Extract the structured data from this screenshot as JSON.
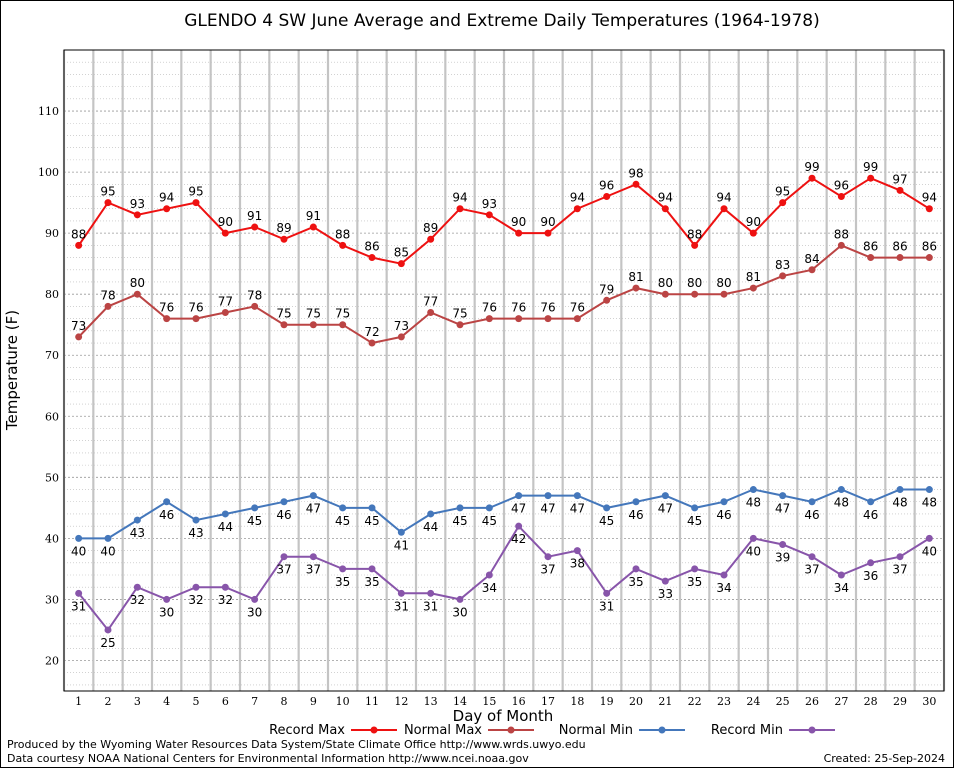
{
  "chart_data": {
    "type": "line",
    "title": "GLENDO 4 SW June Average and Extreme Daily Temperatures (1964-1978)",
    "xlabel": "Day of Month",
    "ylabel": "Temperature (F)",
    "xlim": [
      0.5,
      30.5
    ],
    "ylim": [
      15,
      120
    ],
    "yticks": [
      20,
      30,
      40,
      50,
      60,
      70,
      80,
      90,
      100,
      110
    ],
    "x": [
      1,
      2,
      3,
      4,
      5,
      6,
      7,
      8,
      9,
      10,
      11,
      12,
      13,
      14,
      15,
      16,
      17,
      18,
      19,
      20,
      21,
      22,
      23,
      24,
      25,
      26,
      27,
      28,
      29,
      30
    ],
    "grid": true,
    "legend_position": "bottom",
    "series": [
      {
        "name": "Record Max",
        "color": "#ee1111",
        "label_pos": "above",
        "values": [
          88,
          95,
          93,
          94,
          95,
          90,
          91,
          89,
          91,
          88,
          86,
          85,
          89,
          94,
          93,
          90,
          90,
          94,
          96,
          98,
          94,
          88,
          94,
          90,
          95,
          99,
          96,
          99,
          97,
          94
        ]
      },
      {
        "name": "Normal Max",
        "color": "#bb4444",
        "label_pos": "above",
        "values": [
          73,
          78,
          80,
          76,
          76,
          77,
          78,
          75,
          75,
          75,
          72,
          73,
          77,
          75,
          76,
          76,
          76,
          76,
          79,
          81,
          80,
          80,
          80,
          81,
          83,
          84,
          88,
          86,
          86,
          86
        ]
      },
      {
        "name": "Normal Min",
        "color": "#4477bb",
        "label_pos": "below",
        "values": [
          40,
          40,
          43,
          46,
          43,
          44,
          45,
          46,
          47,
          45,
          45,
          41,
          44,
          45,
          45,
          47,
          47,
          47,
          45,
          46,
          47,
          45,
          46,
          48,
          47,
          46,
          48,
          46,
          48,
          48
        ]
      },
      {
        "name": "Record Min",
        "color": "#8855aa",
        "label_pos": "below",
        "values": [
          31,
          25,
          32,
          30,
          32,
          32,
          30,
          37,
          37,
          35,
          35,
          31,
          31,
          30,
          34,
          42,
          37,
          38,
          31,
          35,
          33,
          35,
          34,
          40,
          39,
          37,
          34,
          36,
          37,
          40
        ]
      }
    ]
  },
  "footer": {
    "line1": "Produced by the Wyoming Water Resources Data System/State Climate Office http://www.wrds.uwyo.edu",
    "line2": "Data courtesy NOAA National Centers for Environmental Information http://www.ncei.noaa.gov",
    "created": "Created:  25-Sep-2024"
  }
}
